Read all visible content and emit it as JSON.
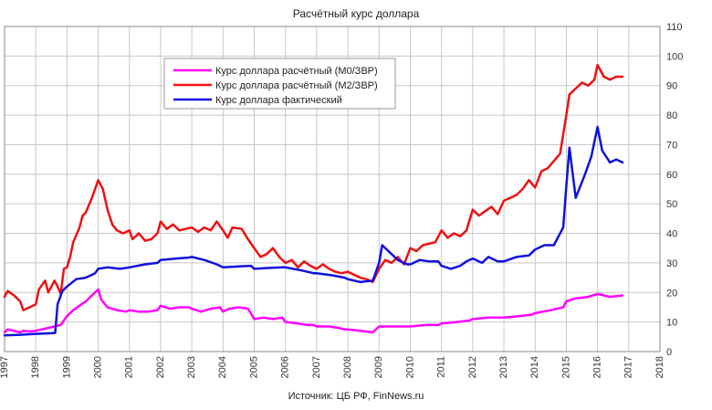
{
  "chart_data": {
    "type": "line",
    "title": "Расчётный  курс доллара",
    "source": "Источник: ЦБ РФ, FinNews.ru",
    "x_range": [
      1997,
      2018
    ],
    "x_ticks": [
      "1997",
      "1998",
      "1999",
      "2000",
      "2001",
      "2002",
      "2003",
      "2004",
      "2005",
      "2006",
      "2007",
      "2008",
      "2009",
      "2010",
      "2011",
      "2012",
      "2013",
      "2014",
      "2015",
      "2016",
      "2017",
      "2018"
    ],
    "y_range": [
      0,
      110
    ],
    "y_ticks": [
      "0",
      "10",
      "20",
      "30",
      "40",
      "50",
      "60",
      "70",
      "80",
      "90",
      "100",
      "110"
    ],
    "y_axis_side": "right",
    "grid": true,
    "legend_position": "top-left",
    "series": [
      {
        "name": "Курс доллара расчётный (М0/ЗВР)",
        "color": "#ff00ff",
        "points": [
          [
            1997.0,
            6.5
          ],
          [
            1997.1,
            7.5
          ],
          [
            1997.3,
            7.0
          ],
          [
            1997.5,
            6.5
          ],
          [
            1997.6,
            7.0
          ],
          [
            1997.8,
            6.8
          ],
          [
            1998.0,
            7.0
          ],
          [
            1998.2,
            7.5
          ],
          [
            1998.4,
            8.0
          ],
          [
            1998.6,
            8.5
          ],
          [
            1998.8,
            9.0
          ],
          [
            1999.0,
            12.0
          ],
          [
            1999.2,
            14.0
          ],
          [
            1999.4,
            15.5
          ],
          [
            1999.6,
            17.0
          ],
          [
            1999.8,
            19.0
          ],
          [
            2000.0,
            21.0
          ],
          [
            2000.1,
            17.5
          ],
          [
            2000.3,
            15.0
          ],
          [
            2000.6,
            14.0
          ],
          [
            2000.9,
            13.5
          ],
          [
            2001.0,
            14.0
          ],
          [
            2001.3,
            13.5
          ],
          [
            2001.6,
            13.5
          ],
          [
            2001.9,
            14.0
          ],
          [
            2002.0,
            15.5
          ],
          [
            2002.3,
            14.5
          ],
          [
            2002.6,
            15.0
          ],
          [
            2002.9,
            15.0
          ],
          [
            2003.0,
            14.5
          ],
          [
            2003.3,
            13.5
          ],
          [
            2003.6,
            14.5
          ],
          [
            2003.9,
            15.0
          ],
          [
            2004.0,
            13.5
          ],
          [
            2004.2,
            14.5
          ],
          [
            2004.5,
            15.0
          ],
          [
            2004.8,
            14.5
          ],
          [
            2005.0,
            11.0
          ],
          [
            2005.3,
            11.5
          ],
          [
            2005.6,
            11.0
          ],
          [
            2005.9,
            11.5
          ],
          [
            2006.0,
            10.0
          ],
          [
            2006.4,
            9.5
          ],
          [
            2006.7,
            9.0
          ],
          [
            2006.9,
            9.0
          ],
          [
            2007.0,
            8.5
          ],
          [
            2007.4,
            8.5
          ],
          [
            2007.7,
            8.0
          ],
          [
            2007.9,
            7.5
          ],
          [
            2008.0,
            7.5
          ],
          [
            2008.4,
            7.0
          ],
          [
            2008.8,
            6.5
          ],
          [
            2009.0,
            8.5
          ],
          [
            2009.5,
            8.5
          ],
          [
            2009.9,
            8.5
          ],
          [
            2010.0,
            8.5
          ],
          [
            2010.5,
            9.0
          ],
          [
            2010.9,
            9.0
          ],
          [
            2011.0,
            9.5
          ],
          [
            2011.5,
            10.0
          ],
          [
            2011.9,
            10.5
          ],
          [
            2012.0,
            11.0
          ],
          [
            2012.5,
            11.5
          ],
          [
            2012.9,
            11.5
          ],
          [
            2013.0,
            11.5
          ],
          [
            2013.5,
            12.0
          ],
          [
            2013.9,
            12.5
          ],
          [
            2014.0,
            13.0
          ],
          [
            2014.5,
            14.0
          ],
          [
            2014.9,
            15.0
          ],
          [
            2015.0,
            17.0
          ],
          [
            2015.3,
            18.0
          ],
          [
            2015.7,
            18.5
          ],
          [
            2016.0,
            19.5
          ],
          [
            2016.4,
            18.5
          ],
          [
            2016.8,
            19.0
          ]
        ]
      },
      {
        "name": "Курс доллара расчётный (М2/ЗВР)",
        "color": "#ee1111",
        "points": [
          [
            1997.0,
            18.5
          ],
          [
            1997.1,
            20.5
          ],
          [
            1997.3,
            19.0
          ],
          [
            1997.5,
            17.0
          ],
          [
            1997.6,
            14.0
          ],
          [
            1997.8,
            15.0
          ],
          [
            1998.0,
            16.0
          ],
          [
            1998.1,
            21.0
          ],
          [
            1998.3,
            24.0
          ],
          [
            1998.4,
            20.0
          ],
          [
            1998.6,
            24.0
          ],
          [
            1998.7,
            22.0
          ],
          [
            1998.8,
            19.5
          ],
          [
            1998.9,
            28.0
          ],
          [
            1999.0,
            28.5
          ],
          [
            1999.1,
            32.0
          ],
          [
            1999.2,
            37.0
          ],
          [
            1999.4,
            42.0
          ],
          [
            1999.5,
            46.0
          ],
          [
            1999.6,
            47.0
          ],
          [
            1999.8,
            52.0
          ],
          [
            2000.0,
            58.0
          ],
          [
            2000.15,
            55.0
          ],
          [
            2000.3,
            48.0
          ],
          [
            2000.45,
            43.0
          ],
          [
            2000.6,
            41.0
          ],
          [
            2000.8,
            40.0
          ],
          [
            2001.0,
            41.0
          ],
          [
            2001.1,
            38.0
          ],
          [
            2001.3,
            40.0
          ],
          [
            2001.5,
            37.5
          ],
          [
            2001.7,
            38.0
          ],
          [
            2001.9,
            40.0
          ],
          [
            2002.0,
            44.0
          ],
          [
            2002.2,
            41.5
          ],
          [
            2002.4,
            43.0
          ],
          [
            2002.6,
            41.0
          ],
          [
            2002.8,
            41.5
          ],
          [
            2003.0,
            42.0
          ],
          [
            2003.2,
            40.5
          ],
          [
            2003.4,
            42.0
          ],
          [
            2003.6,
            41.0
          ],
          [
            2003.8,
            44.0
          ],
          [
            2004.0,
            41.0
          ],
          [
            2004.15,
            38.5
          ],
          [
            2004.3,
            42.0
          ],
          [
            2004.6,
            41.5
          ],
          [
            2004.8,
            38.0
          ],
          [
            2005.0,
            35.0
          ],
          [
            2005.2,
            32.0
          ],
          [
            2005.4,
            33.0
          ],
          [
            2005.6,
            35.0
          ],
          [
            2005.8,
            32.0
          ],
          [
            2006.0,
            30.0
          ],
          [
            2006.2,
            31.0
          ],
          [
            2006.4,
            28.5
          ],
          [
            2006.6,
            30.5
          ],
          [
            2006.8,
            29.0
          ],
          [
            2007.0,
            28.0
          ],
          [
            2007.2,
            29.5
          ],
          [
            2007.4,
            28.0
          ],
          [
            2007.6,
            27.0
          ],
          [
            2007.8,
            26.5
          ],
          [
            2008.0,
            27.0
          ],
          [
            2008.2,
            26.0
          ],
          [
            2008.4,
            25.0
          ],
          [
            2008.6,
            24.5
          ],
          [
            2008.8,
            23.5
          ],
          [
            2009.0,
            28.0
          ],
          [
            2009.2,
            31.0
          ],
          [
            2009.4,
            30.0
          ],
          [
            2009.6,
            32.0
          ],
          [
            2009.8,
            29.5
          ],
          [
            2010.0,
            35.0
          ],
          [
            2010.2,
            34.0
          ],
          [
            2010.4,
            36.0
          ],
          [
            2010.6,
            36.5
          ],
          [
            2010.8,
            37.0
          ],
          [
            2011.0,
            41.0
          ],
          [
            2011.2,
            38.5
          ],
          [
            2011.4,
            40.0
          ],
          [
            2011.6,
            39.0
          ],
          [
            2011.8,
            41.0
          ],
          [
            2012.0,
            48.0
          ],
          [
            2012.2,
            46.0
          ],
          [
            2012.4,
            47.5
          ],
          [
            2012.6,
            49.0
          ],
          [
            2012.8,
            46.5
          ],
          [
            2013.0,
            51.0
          ],
          [
            2013.2,
            52.0
          ],
          [
            2013.4,
            53.0
          ],
          [
            2013.6,
            55.0
          ],
          [
            2013.8,
            58.0
          ],
          [
            2014.0,
            55.5
          ],
          [
            2014.2,
            61.0
          ],
          [
            2014.4,
            62.0
          ],
          [
            2014.6,
            64.5
          ],
          [
            2014.8,
            67.0
          ],
          [
            2015.0,
            80.0
          ],
          [
            2015.1,
            87.0
          ],
          [
            2015.3,
            89.0
          ],
          [
            2015.5,
            91.0
          ],
          [
            2015.7,
            90.0
          ],
          [
            2015.9,
            92.0
          ],
          [
            2016.0,
            97.0
          ],
          [
            2016.2,
            93.0
          ],
          [
            2016.4,
            92.0
          ],
          [
            2016.6,
            93.0
          ],
          [
            2016.8,
            93.0
          ]
        ]
      },
      {
        "name": "Курс доллара фактический",
        "color": "#1111dd",
        "points": [
          [
            1997.0,
            5.5
          ],
          [
            1997.5,
            5.7
          ],
          [
            1998.0,
            6.0
          ],
          [
            1998.5,
            6.2
          ],
          [
            1998.62,
            6.3
          ],
          [
            1998.7,
            16.0
          ],
          [
            1998.85,
            20.5
          ],
          [
            1999.0,
            22.0
          ],
          [
            1999.3,
            24.5
          ],
          [
            1999.6,
            25.0
          ],
          [
            1999.9,
            26.5
          ],
          [
            2000.0,
            28.0
          ],
          [
            2000.3,
            28.5
          ],
          [
            2000.7,
            28.0
          ],
          [
            2001.0,
            28.5
          ],
          [
            2001.5,
            29.5
          ],
          [
            2001.9,
            30.0
          ],
          [
            2002.0,
            31.0
          ],
          [
            2002.5,
            31.5
          ],
          [
            2002.9,
            31.8
          ],
          [
            2003.0,
            32.0
          ],
          [
            2003.4,
            31.0
          ],
          [
            2003.8,
            29.5
          ],
          [
            2004.0,
            28.5
          ],
          [
            2004.5,
            28.8
          ],
          [
            2004.9,
            29.0
          ],
          [
            2005.0,
            28.0
          ],
          [
            2005.5,
            28.3
          ],
          [
            2005.9,
            28.5
          ],
          [
            2006.0,
            28.5
          ],
          [
            2006.5,
            27.5
          ],
          [
            2006.9,
            26.5
          ],
          [
            2007.0,
            26.5
          ],
          [
            2007.5,
            25.8
          ],
          [
            2007.9,
            25.0
          ],
          [
            2008.0,
            24.5
          ],
          [
            2008.4,
            23.5
          ],
          [
            2008.8,
            24.0
          ],
          [
            2009.0,
            30.0
          ],
          [
            2009.1,
            36.0
          ],
          [
            2009.3,
            34.0
          ],
          [
            2009.6,
            31.0
          ],
          [
            2009.9,
            29.5
          ],
          [
            2010.0,
            29.5
          ],
          [
            2010.3,
            31.0
          ],
          [
            2010.6,
            30.5
          ],
          [
            2010.9,
            30.5
          ],
          [
            2011.0,
            29.0
          ],
          [
            2011.3,
            28.0
          ],
          [
            2011.6,
            29.0
          ],
          [
            2011.8,
            30.5
          ],
          [
            2012.0,
            31.5
          ],
          [
            2012.3,
            30.0
          ],
          [
            2012.5,
            32.0
          ],
          [
            2012.8,
            30.5
          ],
          [
            2013.0,
            30.5
          ],
          [
            2013.4,
            32.0
          ],
          [
            2013.8,
            32.5
          ],
          [
            2014.0,
            34.5
          ],
          [
            2014.3,
            36.0
          ],
          [
            2014.6,
            36.0
          ],
          [
            2014.9,
            42.0
          ],
          [
            2015.0,
            56.0
          ],
          [
            2015.1,
            69.0
          ],
          [
            2015.3,
            52.0
          ],
          [
            2015.6,
            60.0
          ],
          [
            2015.8,
            66.0
          ],
          [
            2016.0,
            76.0
          ],
          [
            2016.15,
            68.0
          ],
          [
            2016.4,
            64.0
          ],
          [
            2016.6,
            65.0
          ],
          [
            2016.8,
            64.0
          ]
        ]
      }
    ]
  }
}
